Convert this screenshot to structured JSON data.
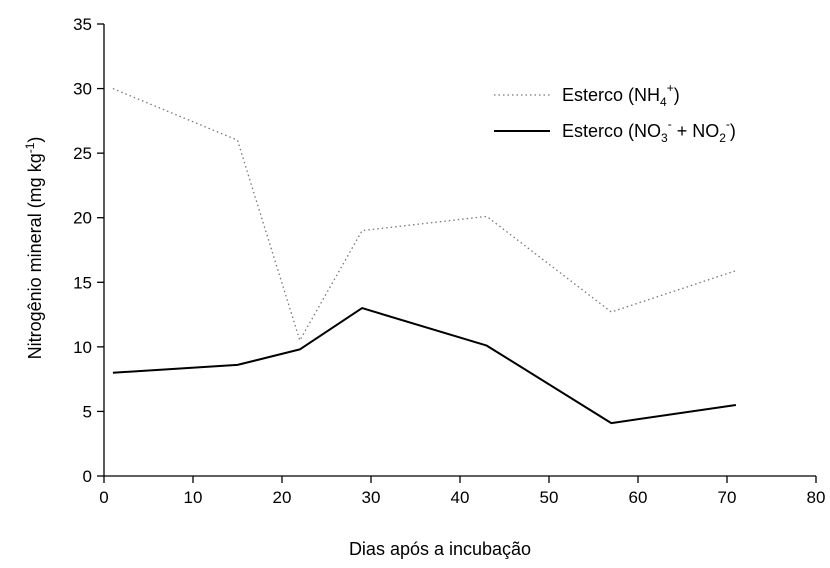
{
  "chart_data": {
    "type": "line",
    "xlabel": "Dias após a incubação",
    "ylabel": {
      "main": "Nitrogênio mineral (mg kg",
      "sup": "-1",
      "end": ")"
    },
    "xlim": [
      0,
      80
    ],
    "ylim": [
      0,
      35
    ],
    "xticks": [
      0,
      10,
      20,
      30,
      40,
      50,
      60,
      70,
      80
    ],
    "yticks": [
      0,
      5,
      10,
      15,
      20,
      25,
      30,
      35
    ],
    "grid": false,
    "legend_position": "top-right",
    "series": [
      {
        "name": "Esterco (NH4+)",
        "legend": {
          "main": "Esterco (NH",
          "sub": "4",
          "sup": "+",
          "end": ")"
        },
        "style": "dotted",
        "color": "#777777",
        "x": [
          1,
          15,
          22,
          29,
          43,
          57,
          71
        ],
        "y": [
          30.0,
          26.0,
          10.5,
          19.0,
          20.1,
          12.7,
          15.9
        ]
      },
      {
        "name": "Esterco (NO3- + NO2-)",
        "legend": {
          "p1": "Esterco (NO",
          "sub1": "3",
          "sup1": "-",
          "p2": " + NO",
          "sub2": "2",
          "sup2": "-",
          "end": ")"
        },
        "style": "solid",
        "color": "#000000",
        "x": [
          1,
          15,
          22,
          29,
          43,
          57,
          71
        ],
        "y": [
          8.0,
          8.6,
          9.8,
          13.0,
          10.1,
          4.1,
          5.5
        ]
      }
    ]
  }
}
